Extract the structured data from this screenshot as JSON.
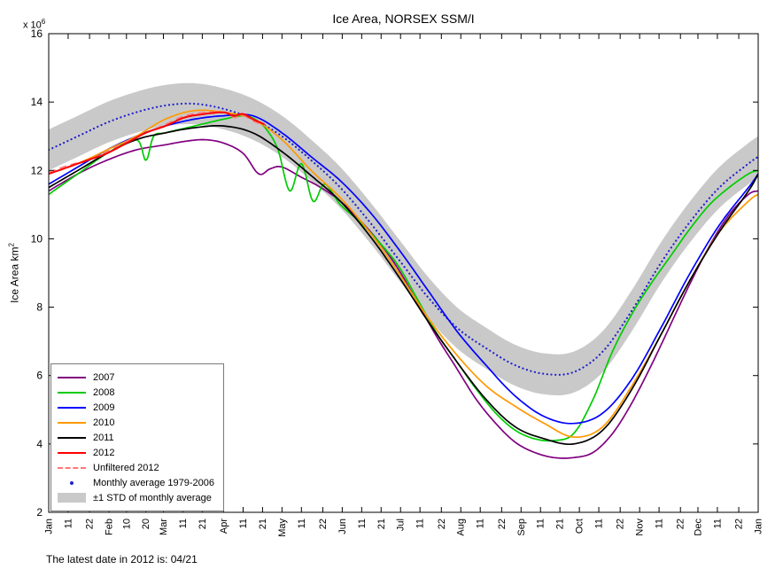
{
  "title": "Ice Area, NORSEX SSM/I",
  "footer": "The latest date in 2012 is: 04/21",
  "chart_data": {
    "type": "line",
    "title": "Ice Area, NORSEX SSM/I",
    "ylabel_base": "Ice Area km",
    "ylabel_exp": "2",
    "y_multiplier_base": "x 10",
    "y_multiplier_exp": "6",
    "grid": false,
    "legend_position": "bottom-left",
    "xlim_days": [
      0,
      365
    ],
    "ylim": [
      2,
      16
    ],
    "yticks": [
      2,
      4,
      6,
      8,
      10,
      12,
      14,
      16
    ],
    "xticks": {
      "days": [
        0,
        10,
        21,
        31,
        40,
        50,
        59,
        69,
        79,
        90,
        100,
        110,
        120,
        130,
        141,
        151,
        161,
        171,
        181,
        191,
        202,
        212,
        222,
        233,
        243,
        253,
        263,
        273,
        283,
        294,
        304,
        314,
        325,
        334,
        344,
        355,
        365
      ],
      "labels": [
        "Jan",
        "11",
        "22",
        "Feb",
        "10",
        "20",
        "Mar",
        "11",
        "21",
        "Apr",
        "11",
        "21",
        "May",
        "11",
        "22",
        "Jun",
        "11",
        "21",
        "Jul",
        "11",
        "22",
        "Aug",
        "11",
        "22",
        "Sep",
        "11",
        "21",
        "Oct",
        "11",
        "22",
        "Nov",
        "11",
        "22",
        "Dec",
        "11",
        "22",
        "Jan"
      ]
    },
    "units": "million km^2",
    "band": {
      "label": "±1 STD of monthly average",
      "std": 0.6,
      "color": "#c9c9c9"
    },
    "series": [
      {
        "name": "Monthly average 1979-2006",
        "role": "average",
        "color": "#2222cc",
        "style": "dotted",
        "width": 2.2,
        "z": 1,
        "x_days": [
          0,
          15,
          30,
          45,
          60,
          75,
          90,
          105,
          120,
          135,
          150,
          165,
          180,
          195,
          210,
          225,
          240,
          255,
          270,
          285,
          300,
          315,
          330,
          345,
          360,
          365
        ],
        "y": [
          12.6,
          13.0,
          13.4,
          13.7,
          13.9,
          13.95,
          13.8,
          13.5,
          13.0,
          12.3,
          11.5,
          10.5,
          9.4,
          8.3,
          7.4,
          6.8,
          6.3,
          6.05,
          6.1,
          6.7,
          7.9,
          9.3,
          10.5,
          11.5,
          12.2,
          12.4
        ]
      },
      {
        "name": "2007",
        "color": "#800080",
        "style": "solid",
        "width": 1.7,
        "z": 2,
        "x_days": [
          0,
          15,
          30,
          45,
          60,
          70,
          80,
          90,
          100,
          108,
          114,
          120,
          130,
          140,
          150,
          160,
          170,
          180,
          190,
          200,
          210,
          220,
          230,
          240,
          250,
          260,
          270,
          280,
          290,
          300,
          310,
          320,
          330,
          340,
          350,
          360,
          365
        ],
        "y": [
          11.4,
          11.9,
          12.3,
          12.6,
          12.75,
          12.85,
          12.9,
          12.8,
          12.5,
          11.9,
          12.05,
          12.1,
          11.8,
          11.5,
          11.1,
          10.55,
          9.9,
          9.1,
          8.1,
          7.1,
          6.2,
          5.3,
          4.6,
          4.05,
          3.75,
          3.6,
          3.6,
          3.75,
          4.3,
          5.2,
          6.3,
          7.5,
          8.7,
          9.8,
          10.7,
          11.3,
          11.4
        ]
      },
      {
        "name": "2008",
        "color": "#00cc00",
        "style": "solid",
        "width": 1.7,
        "z": 3,
        "x_days": [
          0,
          15,
          30,
          45,
          50,
          54,
          60,
          75,
          90,
          100,
          106,
          112,
          118,
          124,
          130,
          136,
          142,
          150,
          160,
          170,
          180,
          190,
          200,
          210,
          220,
          230,
          240,
          250,
          260,
          270,
          280,
          290,
          300,
          310,
          320,
          330,
          340,
          350,
          360,
          365
        ],
        "y": [
          11.3,
          11.9,
          12.5,
          12.9,
          12.3,
          13.0,
          13.1,
          13.3,
          13.5,
          13.6,
          13.5,
          13.2,
          12.6,
          11.4,
          12.2,
          11.1,
          11.6,
          11.0,
          10.5,
          9.9,
          9.2,
          8.2,
          7.2,
          6.4,
          5.6,
          4.9,
          4.4,
          4.15,
          4.1,
          4.3,
          5.3,
          6.7,
          7.8,
          8.7,
          9.5,
          10.3,
          11.0,
          11.5,
          11.9,
          12.0
        ]
      },
      {
        "name": "2009",
        "color": "#0000ff",
        "style": "solid",
        "width": 1.7,
        "z": 4,
        "x_days": [
          0,
          15,
          30,
          45,
          60,
          75,
          90,
          105,
          120,
          135,
          150,
          165,
          180,
          195,
          210,
          225,
          240,
          255,
          270,
          285,
          300,
          315,
          330,
          345,
          360,
          365
        ],
        "y": [
          11.6,
          12.1,
          12.6,
          13.0,
          13.3,
          13.5,
          13.6,
          13.6,
          13.1,
          12.4,
          11.7,
          10.8,
          9.7,
          8.5,
          7.3,
          6.3,
          5.4,
          4.8,
          4.6,
          4.9,
          5.9,
          7.4,
          9.0,
          10.4,
          11.5,
          11.9
        ]
      },
      {
        "name": "2010",
        "color": "#ff9900",
        "style": "solid",
        "width": 1.7,
        "z": 5,
        "x_days": [
          0,
          15,
          30,
          45,
          60,
          75,
          90,
          105,
          120,
          135,
          150,
          165,
          180,
          195,
          210,
          225,
          240,
          255,
          270,
          285,
          300,
          315,
          330,
          345,
          360,
          365
        ],
        "y": [
          11.9,
          12.2,
          12.6,
          13.0,
          13.5,
          13.75,
          13.7,
          13.5,
          12.9,
          12.0,
          11.2,
          10.2,
          9.0,
          7.7,
          6.6,
          5.7,
          5.1,
          4.6,
          4.2,
          4.5,
          5.7,
          7.2,
          8.8,
          10.2,
          11.1,
          11.3
        ]
      },
      {
        "name": "2011",
        "color": "#000000",
        "style": "solid",
        "width": 1.7,
        "z": 6,
        "x_days": [
          0,
          15,
          30,
          45,
          60,
          75,
          90,
          105,
          120,
          135,
          150,
          165,
          180,
          195,
          210,
          225,
          240,
          255,
          270,
          285,
          300,
          315,
          330,
          345,
          360,
          365
        ],
        "y": [
          11.5,
          12.0,
          12.5,
          12.9,
          13.1,
          13.25,
          13.3,
          13.1,
          12.55,
          11.85,
          11.1,
          10.1,
          8.9,
          7.6,
          6.4,
          5.3,
          4.5,
          4.15,
          4.0,
          4.4,
          5.6,
          7.2,
          8.8,
          10.2,
          11.4,
          11.9
        ]
      },
      {
        "name": "Unfiltered 2012",
        "color": "#ff7777",
        "style": "dashed",
        "width": 1.4,
        "z": 7,
        "x_days": [
          0,
          10,
          20,
          30,
          40,
          50,
          60,
          70,
          80,
          90,
          95,
          100,
          105,
          111
        ],
        "y": [
          11.95,
          12.15,
          12.3,
          12.55,
          12.85,
          13.1,
          13.35,
          13.6,
          13.7,
          13.7,
          13.55,
          13.6,
          13.45,
          13.3
        ]
      },
      {
        "name": "2012",
        "color": "#ff0000",
        "style": "solid",
        "width": 2.0,
        "z": 8,
        "x_days": [
          0,
          10,
          20,
          30,
          40,
          50,
          60,
          70,
          80,
          90,
          95,
          100,
          105,
          111
        ],
        "y": [
          11.9,
          12.1,
          12.3,
          12.5,
          12.8,
          13.1,
          13.3,
          13.55,
          13.65,
          13.7,
          13.6,
          13.65,
          13.5,
          13.35
        ]
      }
    ],
    "legend": [
      {
        "label": "2007",
        "swatch": "line",
        "color": "#800080"
      },
      {
        "label": "2008",
        "swatch": "line",
        "color": "#00cc00"
      },
      {
        "label": "2009",
        "swatch": "line",
        "color": "#0000ff"
      },
      {
        "label": "2010",
        "swatch": "line",
        "color": "#ff9900"
      },
      {
        "label": "2011",
        "swatch": "line",
        "color": "#000000"
      },
      {
        "label": "2012",
        "swatch": "line",
        "color": "#ff0000"
      },
      {
        "label": "Unfiltered 2012",
        "swatch": "dashed",
        "color": "#ff7777"
      },
      {
        "label": "Monthly average 1979-2006",
        "swatch": "dot",
        "color": "#2222cc"
      },
      {
        "label": "±1 STD of monthly average",
        "swatch": "band",
        "color": "#c9c9c9"
      }
    ]
  }
}
